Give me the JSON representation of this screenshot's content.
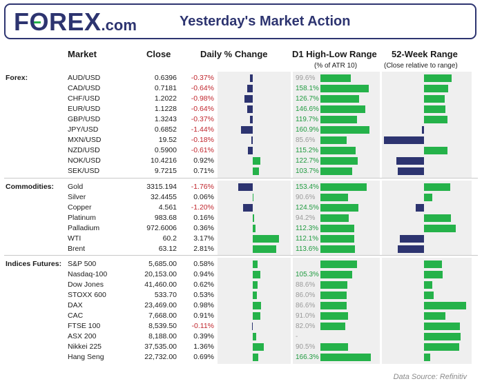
{
  "header": {
    "logo_main": "F",
    "logo_o": "O",
    "logo_rest": "REX",
    "logo_suffix": ".com",
    "title": "Yesterday's Market Action"
  },
  "columns": {
    "market": "Market",
    "close": "Close",
    "daily": "Daily % Change",
    "range": "D1 High-Low Range",
    "range_sub": "(% of ATR 10)",
    "week52": "52-Week Range",
    "week52_sub": "(Close relative to range)"
  },
  "source": "Data Source: Refinitiv",
  "colors": {
    "positive": "#25b24a",
    "negative": "#2d3470",
    "neg_text": "#c0262d",
    "brand": "#2d3470"
  },
  "chart_data": {
    "type": "table",
    "groups": [
      {
        "name": "Forex:",
        "rows": [
          {
            "market": "AUD/USD",
            "close": "0.6396",
            "change": "-0.37%",
            "change_val": -0.37,
            "range": "99.6%",
            "range_val": 99.6,
            "w52": 0.31
          },
          {
            "market": "CAD/USD",
            "close": "0.7181",
            "change": "-0.64%",
            "change_val": -0.64,
            "range": "158.1%",
            "range_val": 158.1,
            "w52": 0.27
          },
          {
            "market": "CHF/USD",
            "close": "1.2022",
            "change": "-0.98%",
            "change_val": -0.98,
            "range": "126.7%",
            "range_val": 126.7,
            "w52": 0.23
          },
          {
            "market": "EUR/USD",
            "close": "1.1228",
            "change": "-0.64%",
            "change_val": -0.64,
            "range": "146.6%",
            "range_val": 146.6,
            "w52": 0.24
          },
          {
            "market": "GBP/USD",
            "close": "1.3243",
            "change": "-0.37%",
            "change_val": -0.37,
            "range": "119.7%",
            "range_val": 119.7,
            "w52": 0.26
          },
          {
            "market": "JPY/USD",
            "close": "0.6852",
            "change": "-1.44%",
            "change_val": -1.44,
            "range": "160.9%",
            "range_val": 160.9,
            "w52": -0.02
          },
          {
            "market": "MXN/USD",
            "close": "19.52",
            "change": "-0.18%",
            "change_val": -0.18,
            "range": "85.6%",
            "range_val": 85.6,
            "w52": -0.45
          },
          {
            "market": "NZD/USD",
            "close": "0.5900",
            "change": "-0.61%",
            "change_val": -0.61,
            "range": "115.2%",
            "range_val": 115.2,
            "w52": 0.26
          },
          {
            "market": "NOK/USD",
            "close": "10.4216",
            "change": "0.92%",
            "change_val": 0.92,
            "range": "122.7%",
            "range_val": 122.7,
            "w52": -0.31
          },
          {
            "market": "SEK/USD",
            "close": "9.7215",
            "change": "0.71%",
            "change_val": 0.71,
            "range": "103.7%",
            "range_val": 103.7,
            "w52": -0.29
          }
        ]
      },
      {
        "name": "Commodities:",
        "rows": [
          {
            "market": "Gold",
            "close": "3315.194",
            "change": "-1.76%",
            "change_val": -1.76,
            "range": "153.4%",
            "range_val": 153.4,
            "w52": 0.29
          },
          {
            "market": "Silver",
            "close": "32.4455",
            "change": "0.06%",
            "change_val": 0.06,
            "range": "90.6%",
            "range_val": 90.6,
            "w52": 0.09
          },
          {
            "market": "Copper",
            "close": "4.561",
            "change": "-1.20%",
            "change_val": -1.2,
            "range": "124.5%",
            "range_val": 124.5,
            "w52": -0.09
          },
          {
            "market": "Platinum",
            "close": "983.68",
            "change": "0.16%",
            "change_val": 0.16,
            "range": "94.2%",
            "range_val": 94.2,
            "w52": 0.3
          },
          {
            "market": "Palladium",
            "close": "972.6006",
            "change": "0.36%",
            "change_val": 0.36,
            "range": "112.3%",
            "range_val": 112.3,
            "w52": 0.35
          },
          {
            "market": "WTI",
            "close": "60.2",
            "change": "3.17%",
            "change_val": 3.17,
            "range": "112.1%",
            "range_val": 112.1,
            "w52": -0.27
          },
          {
            "market": "Brent",
            "close": "63.12",
            "change": "2.81%",
            "change_val": 2.81,
            "range": "113.6%",
            "range_val": 113.6,
            "w52": -0.29
          }
        ]
      },
      {
        "name": "Indices Futures:",
        "rows": [
          {
            "market": "S&P 500",
            "close": "5,685.00",
            "change": "0.58%",
            "change_val": 0.58,
            "range": "",
            "range_val": 120,
            "w52": 0.2
          },
          {
            "market": "Nasdaq-100",
            "close": "20,153.00",
            "change": "0.94%",
            "change_val": 0.94,
            "range": "105.3%",
            "range_val": 105.3,
            "w52": 0.21
          },
          {
            "market": "Dow Jones",
            "close": "41,460.00",
            "change": "0.62%",
            "change_val": 0.62,
            "range": "88.6%",
            "range_val": 88.6,
            "w52": 0.09
          },
          {
            "market": "STOXX 600",
            "close": "533.70",
            "change": "0.53%",
            "change_val": 0.53,
            "range": "86.0%",
            "range_val": 86.0,
            "w52": 0.11
          },
          {
            "market": "DAX",
            "close": "23,469.00",
            "change": "0.98%",
            "change_val": 0.98,
            "range": "86.6%",
            "range_val": 86.6,
            "w52": 0.47
          },
          {
            "market": "CAC",
            "close": "7,668.00",
            "change": "0.91%",
            "change_val": 0.91,
            "range": "91.0%",
            "range_val": 91.0,
            "w52": 0.24
          },
          {
            "market": "FTSE 100",
            "close": "8,539.50",
            "change": "-0.11%",
            "change_val": -0.11,
            "range": "82.0%",
            "range_val": 82.0,
            "w52": 0.4
          },
          {
            "market": "ASX 200",
            "close": "8,188.00",
            "change": "0.39%",
            "change_val": 0.39,
            "range": "-",
            "range_val": 0,
            "w52": 0.41
          },
          {
            "market": "Nikkei 225",
            "close": "37,535.00",
            "change": "1.36%",
            "change_val": 1.36,
            "range": "90.5%",
            "range_val": 90.5,
            "w52": 0.39
          },
          {
            "market": "Hang Seng",
            "close": "22,732.00",
            "change": "0.69%",
            "change_val": 0.69,
            "range": "166.3%",
            "range_val": 166.3,
            "w52": 0.07
          }
        ]
      }
    ]
  }
}
